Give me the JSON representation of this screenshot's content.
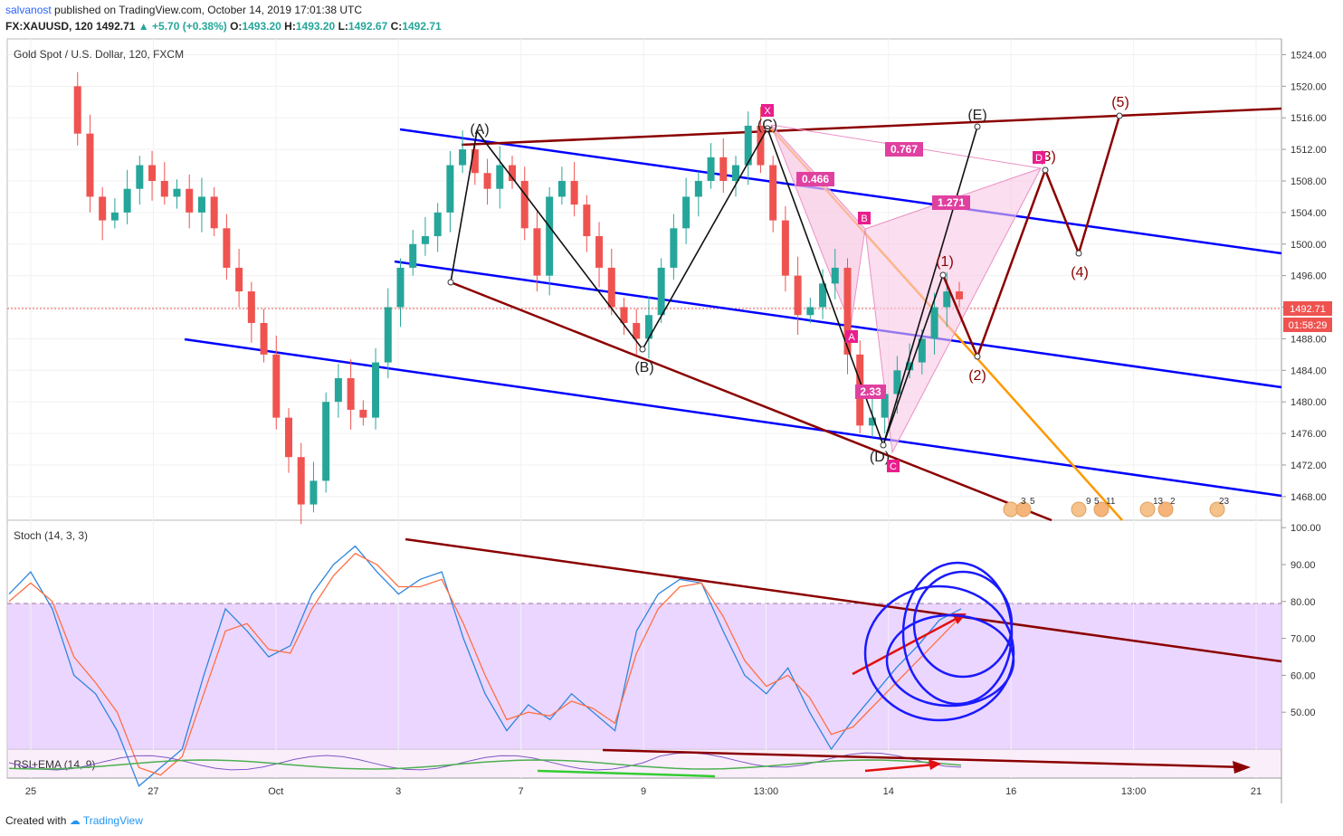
{
  "header": {
    "user": "salvanost",
    "published": "published on TradingView.com, October 14, 2019 17:01:38 UTC",
    "symbol": "FX:XAUUSD, 120",
    "last": "1492.71",
    "change": "+5.70 (+0.38%)",
    "open_label": "O:",
    "open": "1493.20",
    "high_label": "H:",
    "high": "1493.20",
    "low_label": "L:",
    "low": "1492.67",
    "close_label": "C:",
    "close": "1492.71"
  },
  "main_pane": {
    "title": "Gold Spot / U.S. Dollar, 120, FXCM",
    "price_label": "1492.71",
    "countdown": "01:58:29",
    "wave_labels": [
      "(A)",
      "(B)",
      "(C)",
      "(D)",
      "(E)",
      "(1)",
      "(2)",
      "(3)",
      "(4)",
      "(5)"
    ],
    "harmonic_points": [
      "X",
      "A",
      "B",
      "C",
      "D"
    ],
    "fib_ratios": [
      "0.767",
      "0.466",
      "1.271",
      "2.33"
    ],
    "event_counts": [
      "3",
      "5",
      "9",
      "5",
      "11",
      "13",
      "2",
      "23"
    ]
  },
  "stoch_pane": {
    "title": "Stoch (14, 3, 3)"
  },
  "rsi_pane": {
    "title": "RSI+EMA (14, 9)"
  },
  "footer": {
    "created": "Created with",
    "brand": "TradingView"
  },
  "colors": {
    "up": "#26a69a",
    "down": "#ef5350",
    "channel": "#0000ff",
    "maroon": "#8b0000",
    "orange": "#ff9800",
    "pink": "#e91e8c",
    "stoch_band": "#e6ccff"
  },
  "chart_data": [
    {
      "type": "candlestick",
      "title": "Gold Spot / U.S. Dollar, 120, FXCM",
      "x_tick_labels": [
        "25",
        "27",
        "Oct",
        "3",
        "7",
        "9",
        "13:00",
        "14",
        "16",
        "13:00",
        "21"
      ],
      "y_tick_labels": [
        "1524.00",
        "1520.00",
        "1516.00",
        "1512.00",
        "1508.00",
        "1504.00",
        "1500.00",
        "1496.00",
        "1492.00",
        "1488.00",
        "1484.00",
        "1480.00",
        "1476.00",
        "1472.00",
        "1468.00"
      ],
      "ylim": [
        1465,
        1526
      ],
      "close_path": [
        1520,
        1514,
        1506,
        1503,
        1504,
        1507,
        1510,
        1508,
        1506,
        1507,
        1504,
        1506,
        1502,
        1497,
        1494,
        1490,
        1486,
        1478,
        1473,
        1467,
        1470,
        1480,
        1483,
        1479,
        1478,
        1485,
        1492,
        1497,
        1500,
        1501,
        1504,
        1510,
        1512,
        1509,
        1507,
        1510,
        1508,
        1502,
        1496,
        1506,
        1508,
        1505,
        1501,
        1497,
        1492,
        1490,
        1488,
        1491,
        1497,
        1502,
        1506,
        1508,
        1511,
        1508,
        1510,
        1515,
        1510,
        1503,
        1496,
        1491,
        1492,
        1495,
        1497,
        1486,
        1477,
        1478,
        1481,
        1484,
        1485,
        1488,
        1492,
        1494,
        1493
      ],
      "annotations": {
        "wave_points": [
          {
            "label": "(A)",
            "y": 1514.0
          },
          {
            "label": "(B)",
            "y": 1487.0
          },
          {
            "label": "(C)",
            "y": 1516.0
          },
          {
            "label": "(D)",
            "y": 1474.5
          },
          {
            "label": "(E)",
            "y": 1516.0
          },
          {
            "label": "(1)",
            "y": 1497.0
          },
          {
            "label": "(2)",
            "y": 1486.0
          },
          {
            "label": "(3)",
            "y": 1511.0
          },
          {
            "label": "(4)",
            "y": 1500.0
          },
          {
            "label": "(5)",
            "y": 1518.0
          }
        ]
      }
    },
    {
      "type": "line",
      "title": "Stoch (14, 3, 3)",
      "y_tick_labels": [
        "100.00",
        "90.00",
        "80.00",
        "70.00",
        "60.00",
        "50.00"
      ],
      "ylim": [
        40,
        102
      ],
      "band": [
        20,
        80
      ],
      "series": [
        {
          "values": [
            82,
            88,
            78,
            60,
            55,
            45,
            30,
            35,
            40,
            60,
            78,
            72,
            65,
            68,
            82,
            90,
            95,
            88,
            82,
            86,
            88,
            70,
            55,
            45,
            52,
            48,
            55,
            50,
            45,
            72,
            82,
            86,
            85,
            72,
            60,
            55,
            62,
            50,
            40,
            48,
            55,
            62,
            68,
            75,
            78
          ]
        },
        {
          "values": [
            80,
            85,
            80,
            65,
            58,
            50,
            35,
            33,
            38,
            55,
            72,
            74,
            67,
            66,
            78,
            87,
            93,
            90,
            84,
            84,
            86,
            74,
            60,
            48,
            50,
            49,
            53,
            51,
            47,
            66,
            78,
            84,
            85,
            76,
            64,
            57,
            60,
            54,
            44,
            46,
            52,
            58,
            64,
            70,
            76
          ]
        }
      ]
    },
    {
      "type": "line",
      "title": "RSI+EMA (14, 9)",
      "x_tick_labels": [
        "25",
        "27",
        "Oct",
        "3",
        "7",
        "9",
        "13:00",
        "14",
        "16",
        "13:00",
        "21"
      ]
    }
  ]
}
